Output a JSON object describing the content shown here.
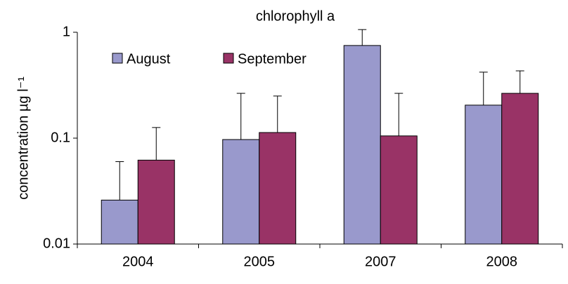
{
  "chart_data": {
    "type": "bar",
    "title": "chlorophyll a",
    "y_label": "concentration µg l⁻¹",
    "categories": [
      "2004",
      "2005",
      "2007",
      "2008"
    ],
    "series": [
      {
        "name": "August",
        "color": "#9999cc",
        "values": [
          0.026,
          0.097,
          0.75,
          0.205
        ],
        "errors": [
          0.034,
          0.168,
          0.31,
          0.215
        ]
      },
      {
        "name": "September",
        "color": "#993366",
        "values": [
          0.062,
          0.113,
          0.105,
          0.265
        ],
        "errors": [
          0.064,
          0.137,
          0.16,
          0.167
        ]
      }
    ],
    "ylim": [
      0.01,
      1
    ],
    "yticks": [
      0.01,
      0.1,
      1
    ],
    "log_y": true,
    "legend": "upper left"
  }
}
